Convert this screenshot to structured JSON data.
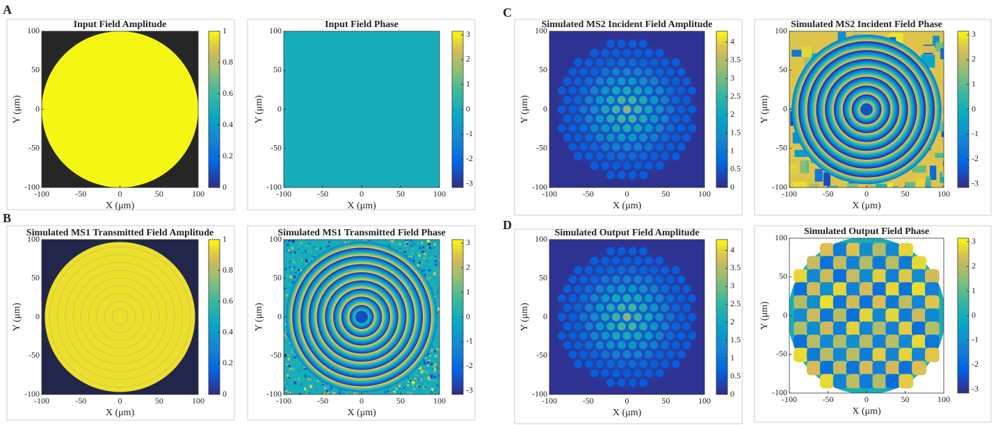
{
  "panel_labels": [
    "A",
    "B",
    "C",
    "D"
  ],
  "chart_data": [
    {
      "type": "heatmap",
      "title": "Input Field Amplitude",
      "xlabel": "X (μm)",
      "ylabel": "Y (μm)",
      "xlim": [
        -100,
        100
      ],
      "ylim": [
        -100,
        100
      ],
      "xticks": [
        -100,
        -50,
        0,
        50,
        100
      ],
      "yticks": [
        -100,
        -50,
        0,
        50,
        100
      ],
      "colormap": "parula",
      "clim": [
        0,
        1
      ],
      "cticks": [
        0,
        0.2,
        0.4,
        0.6,
        0.8,
        1
      ]
    },
    {
      "type": "heatmap",
      "title": "Input Field Phase",
      "xlabel": "X (μm)",
      "ylabel": "Y (μm)",
      "xlim": [
        -100,
        100
      ],
      "ylim": [
        -100,
        100
      ],
      "xticks": [
        -100,
        -50,
        0,
        50,
        100
      ],
      "yticks": [
        -100,
        -50,
        0,
        50,
        100
      ],
      "colormap": "parula",
      "clim": [
        -3.1416,
        3.1416
      ],
      "cticks": [
        -3,
        -2,
        -1,
        0,
        1,
        2,
        3
      ]
    },
    {
      "type": "heatmap",
      "title": "Simulated MS1 Transmitted Field Amplitude",
      "xlabel": "X (μm)",
      "ylabel": "Y (μm)",
      "xlim": [
        -100,
        100
      ],
      "ylim": [
        -100,
        100
      ],
      "xticks": [
        -100,
        -50,
        0,
        50,
        100
      ],
      "yticks": [
        -100,
        -50,
        0,
        50,
        100
      ],
      "colormap": "parula",
      "clim": [
        0,
        1
      ],
      "cticks": [
        0,
        0.2,
        0.4,
        0.6,
        0.8,
        1
      ]
    },
    {
      "type": "heatmap",
      "title": "Simulated MS1 Transmitted Field Phase",
      "xlabel": "X (μm)",
      "ylabel": "Y (μm)",
      "xlim": [
        -100,
        100
      ],
      "ylim": [
        -100,
        100
      ],
      "xticks": [
        -100,
        -50,
        0,
        50,
        100
      ],
      "yticks": [
        -100,
        -50,
        0,
        50,
        100
      ],
      "colormap": "parula",
      "clim": [
        -3.1416,
        3.1416
      ],
      "cticks": [
        -3,
        -2,
        -1,
        0,
        1,
        2,
        3
      ]
    },
    {
      "type": "heatmap",
      "title": "Simulated MS2 Incident Field Amplitude",
      "xlabel": "X (μm)",
      "ylabel": "Y (μm)",
      "xlim": [
        -100,
        100
      ],
      "ylim": [
        -100,
        100
      ],
      "xticks": [
        -100,
        -50,
        0,
        50,
        100
      ],
      "yticks": [
        -100,
        -50,
        0,
        50,
        100
      ],
      "colormap": "parula",
      "clim": [
        0,
        4.3
      ],
      "cticks": [
        0,
        0.5,
        1,
        1.5,
        2,
        2.5,
        3,
        3.5,
        4
      ]
    },
    {
      "type": "heatmap",
      "title": "Simulated MS2 Incident Field Phase",
      "xlabel": "X (μm)",
      "ylabel": "Y (μm)",
      "xlim": [
        -100,
        100
      ],
      "ylim": [
        -100,
        100
      ],
      "xticks": [
        -100,
        -50,
        0,
        50,
        100
      ],
      "yticks": [
        -100,
        -50,
        0,
        50,
        100
      ],
      "colormap": "parula",
      "clim": [
        -3.1416,
        3.1416
      ],
      "cticks": [
        -3,
        -2,
        -1,
        0,
        1,
        2,
        3
      ]
    },
    {
      "type": "heatmap",
      "title": "Simulated Output Field Amplitude",
      "xlabel": "X (μm)",
      "ylabel": "Y (μm)",
      "xlim": [
        -100,
        100
      ],
      "ylim": [
        -100,
        100
      ],
      "xticks": [
        -100,
        -50,
        0,
        50,
        100
      ],
      "yticks": [
        -100,
        -50,
        0,
        50,
        100
      ],
      "colormap": "parula",
      "clim": [
        0,
        4.3
      ],
      "cticks": [
        0,
        0.5,
        1,
        1.5,
        2,
        2.5,
        3,
        3.5,
        4
      ]
    },
    {
      "type": "heatmap",
      "title": "Simulated Output Field Phase",
      "xlabel": "X (μm)",
      "ylabel": "Y (μm)",
      "xlim": [
        -100,
        100
      ],
      "ylim": [
        -100,
        100
      ],
      "xticks": [
        -100,
        -50,
        0,
        50,
        100
      ],
      "yticks": [
        -100,
        -50,
        0,
        50,
        100
      ],
      "colormap": "parula",
      "clim": [
        -3.1416,
        3.1416
      ],
      "cticks": [
        -3,
        -2,
        -1,
        0,
        1,
        2,
        3
      ]
    }
  ]
}
